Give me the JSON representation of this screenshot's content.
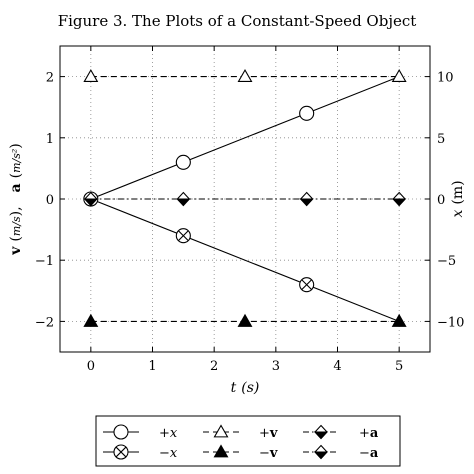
{
  "chart_data": {
    "type": "line",
    "title": "Figure 3.   The Plots of a Constant-Speed Object",
    "xlabel": "t (s)",
    "xlabel_var": "t",
    "xlabel_unit": "(s)",
    "ylabel_left": "v (m/s), a (m/s²)",
    "ylabel_left_parts": {
      "v": "v",
      "v_unit": "m/s",
      "sep": ",",
      "a": "a",
      "a_unit": "m/s²",
      "open": "(",
      "close": ")"
    },
    "ylabel_right": "x (m)",
    "ylabel_right_parts": {
      "var": "x",
      "unit": "(m)"
    },
    "xlim": [
      -0.5,
      5.5
    ],
    "ylim_left": [
      -2.5,
      2.5
    ],
    "ylim_right": [
      -12.5,
      12.5
    ],
    "xticks": [
      0,
      1,
      2,
      3,
      4,
      5
    ],
    "yticks_left": [
      -2,
      -1,
      0,
      1,
      2
    ],
    "yticks_left_labels": [
      "−2",
      "−1",
      "0",
      "1",
      "2"
    ],
    "yticks_right": [
      -10,
      -5,
      0,
      5,
      10
    ],
    "yticks_right_labels": [
      "−10",
      "−5",
      "0",
      "5",
      "10"
    ],
    "grid": true,
    "legend_placement": "bottom-outside",
    "series": [
      {
        "name": "+x",
        "name_sign": "+",
        "name_var": "x",
        "axis": "right",
        "line": "solid",
        "marker": "circle",
        "x": [
          0,
          5
        ],
        "y": [
          0,
          10
        ],
        "marker_x": [
          0,
          1.5,
          3.5
        ],
        "marker_y": [
          0,
          3,
          7
        ]
      },
      {
        "name": "−x",
        "name_sign": "−",
        "name_var": "x",
        "axis": "right",
        "line": "solid",
        "marker": "otimes",
        "x": [
          0,
          5
        ],
        "y": [
          0,
          -10
        ],
        "marker_x": [
          1.5,
          3.5
        ],
        "marker_y": [
          -3,
          -7
        ]
      },
      {
        "name": "+v",
        "name_sign": "+",
        "name_var": "v",
        "axis": "left",
        "line": "dashed",
        "marker": "triangle-open",
        "x": [
          0,
          5
        ],
        "y": [
          2,
          2
        ],
        "marker_x": [
          0,
          2.5,
          5
        ],
        "marker_y": [
          2,
          2,
          2
        ]
      },
      {
        "name": "−v",
        "name_sign": "−",
        "name_var": "v",
        "axis": "left",
        "line": "dashed",
        "marker": "triangle-filled",
        "x": [
          0,
          5
        ],
        "y": [
          -2,
          -2
        ],
        "marker_x": [
          0,
          2.5,
          5
        ],
        "marker_y": [
          -2,
          -2,
          -2
        ]
      },
      {
        "name": "+a",
        "name_sign": "+",
        "name_var": "a",
        "axis": "left",
        "line": "dashdot",
        "marker": "diamond-half",
        "x": [
          0,
          5
        ],
        "y": [
          0,
          0
        ],
        "marker_x": [
          1.5,
          3.5,
          5
        ],
        "marker_y": [
          0,
          0,
          0
        ]
      },
      {
        "name": "−a",
        "name_sign": "−",
        "name_var": "a",
        "axis": "left",
        "line": "dashdot",
        "marker": "diamond-half",
        "x": [
          0,
          5
        ],
        "y": [
          0,
          0
        ],
        "marker_x": [
          0
        ],
        "marker_y": [
          0
        ]
      }
    ]
  }
}
